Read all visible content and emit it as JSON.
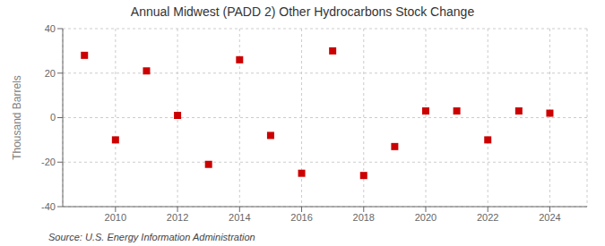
{
  "chart_data": {
    "type": "scatter",
    "title": "Annual Midwest (PADD 2) Other Hydrocarbons Stock Change",
    "y_label": "Thousand Barrels",
    "source": "Source: U.S. Energy Information Administration",
    "x": [
      2009,
      2010,
      2011,
      2012,
      2013,
      2014,
      2015,
      2016,
      2017,
      2018,
      2019,
      2020,
      2021,
      2022,
      2023,
      2024
    ],
    "values": [
      28,
      -10,
      21,
      1,
      -21,
      26,
      -8,
      -25,
      30,
      -26,
      -13,
      3,
      3,
      -10,
      3,
      2
    ],
    "color": "#cc0000",
    "marker": "square",
    "xlim": [
      2008.3,
      2025.2
    ],
    "xticks": [
      2010,
      2012,
      2014,
      2016,
      2018,
      2020,
      2022,
      2024
    ],
    "ylim": [
      -40,
      40
    ],
    "yticks": [
      -40,
      -20,
      0,
      20,
      40
    ],
    "grid": true
  }
}
